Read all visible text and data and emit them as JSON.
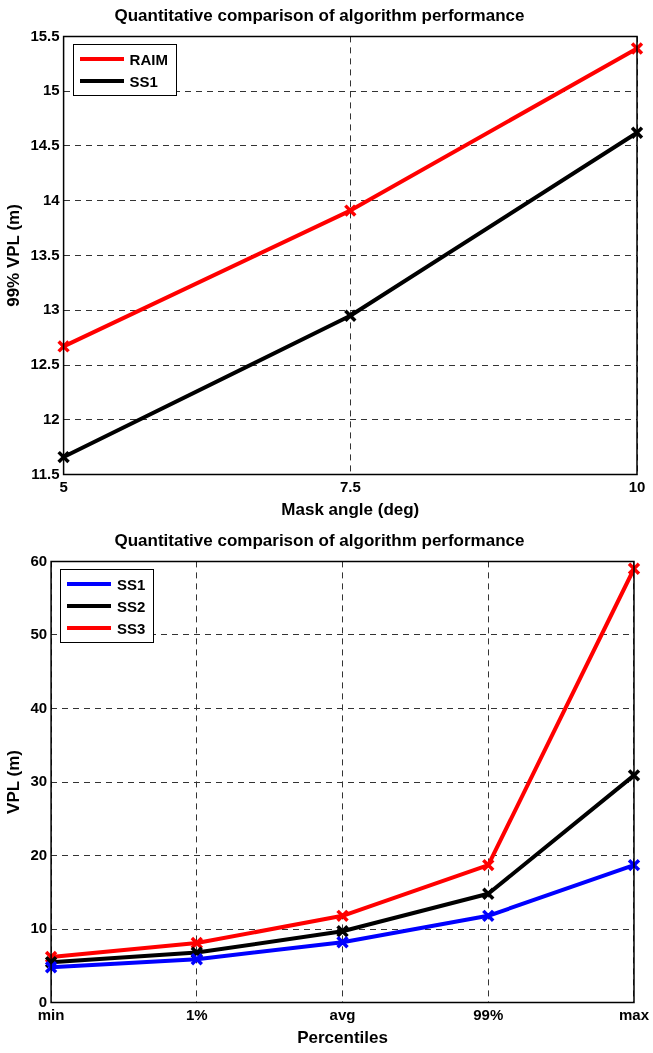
{
  "chart_data": [
    {
      "type": "line",
      "title": "Quantitative comparison of algorithm performance",
      "xlabel": "Mask angle (deg)",
      "ylabel": "99% VPL (m)",
      "x": [
        5,
        7.5,
        10
      ],
      "xlim": [
        5,
        10
      ],
      "xticks": [
        5,
        7.5,
        10
      ],
      "ylim": [
        11.5,
        15.5
      ],
      "yticks": [
        11.5,
        12,
        12.5,
        13,
        13.5,
        14,
        14.5,
        15,
        15.5
      ],
      "grid": true,
      "legend": "top left",
      "marker": "cross",
      "line_style": "solid",
      "series": [
        {
          "name": "RAIM",
          "color": "#ff0000",
          "values": [
            12.67,
            13.91,
            15.39
          ]
        },
        {
          "name": "SS1",
          "color": "#000000",
          "values": [
            11.66,
            12.95,
            14.62
          ]
        }
      ]
    },
    {
      "type": "line",
      "title": "Quantitative comparison of algorithm performance",
      "xlabel": "Percentiles",
      "ylabel": "VPL (m)",
      "categories": [
        "min",
        "1%",
        "avg",
        "99%",
        "max"
      ],
      "ylim": [
        0,
        60
      ],
      "yticks": [
        0,
        10,
        20,
        30,
        40,
        50,
        60
      ],
      "grid": true,
      "legend": "top left",
      "marker": "cross",
      "line_style": "solid",
      "series": [
        {
          "name": "SS1",
          "color": "#0000ff",
          "values": [
            4.8,
            5.9,
            8.2,
            11.8,
            18.7
          ]
        },
        {
          "name": "SS2",
          "color": "#000000",
          "values": [
            5.5,
            6.8,
            9.7,
            14.8,
            30.9
          ]
        },
        {
          "name": "SS3",
          "color": "#ff0000",
          "values": [
            6.2,
            8.1,
            11.8,
            18.7,
            59.0
          ]
        }
      ]
    }
  ]
}
